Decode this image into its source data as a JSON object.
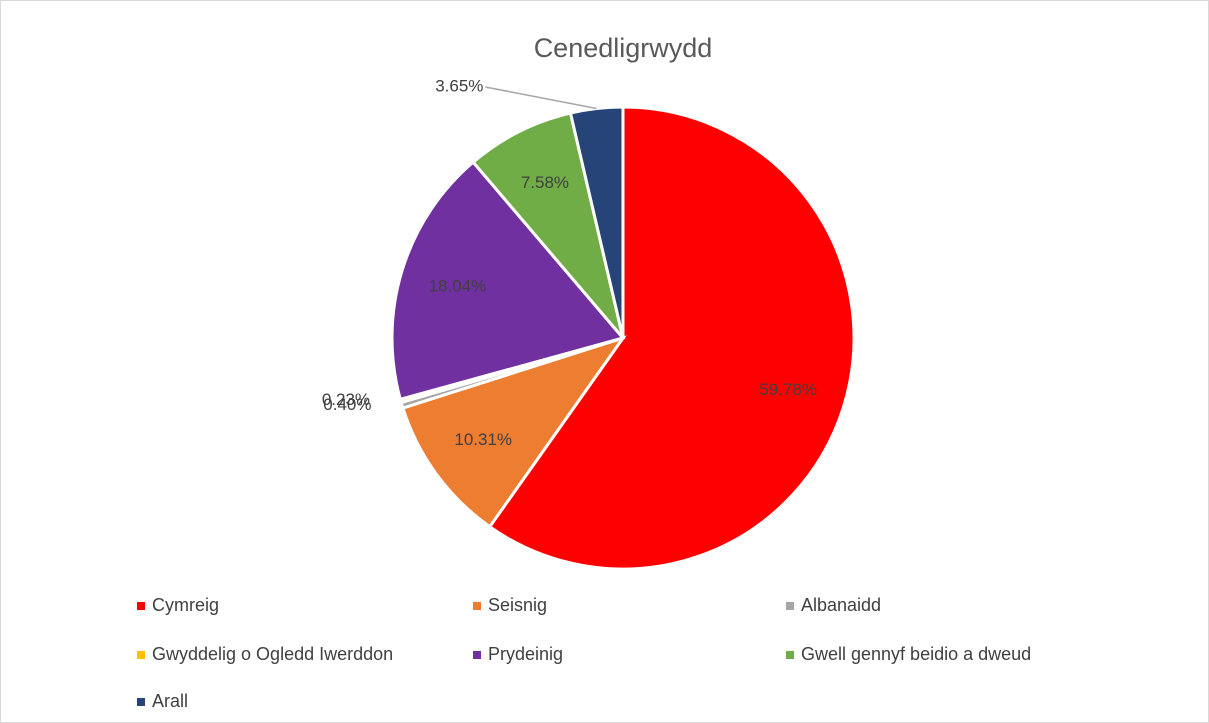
{
  "chart_data": {
    "type": "pie",
    "title": "Cenedligrwydd",
    "categories": [
      "Cymreig",
      "Seisnig",
      "Albanaidd",
      "Gwyddelig o Ogledd Iwerddon",
      "Prydeinig",
      "Gwell gennyf beidio a dweud",
      "Arall"
    ],
    "values": [
      59.78,
      10.31,
      0.4,
      0.23,
      18.04,
      7.58,
      3.65
    ],
    "value_labels": [
      "59.78%",
      "10.31%",
      "0.40%",
      "0.23%",
      "18.04%",
      "7.58%",
      "3.65%"
    ],
    "colors": [
      "#ff0000",
      "#ed7d31",
      "#a5a5a5",
      "#ffc000",
      "#7030a0",
      "#70ad47",
      "#264478"
    ],
    "legend": "bottom"
  }
}
